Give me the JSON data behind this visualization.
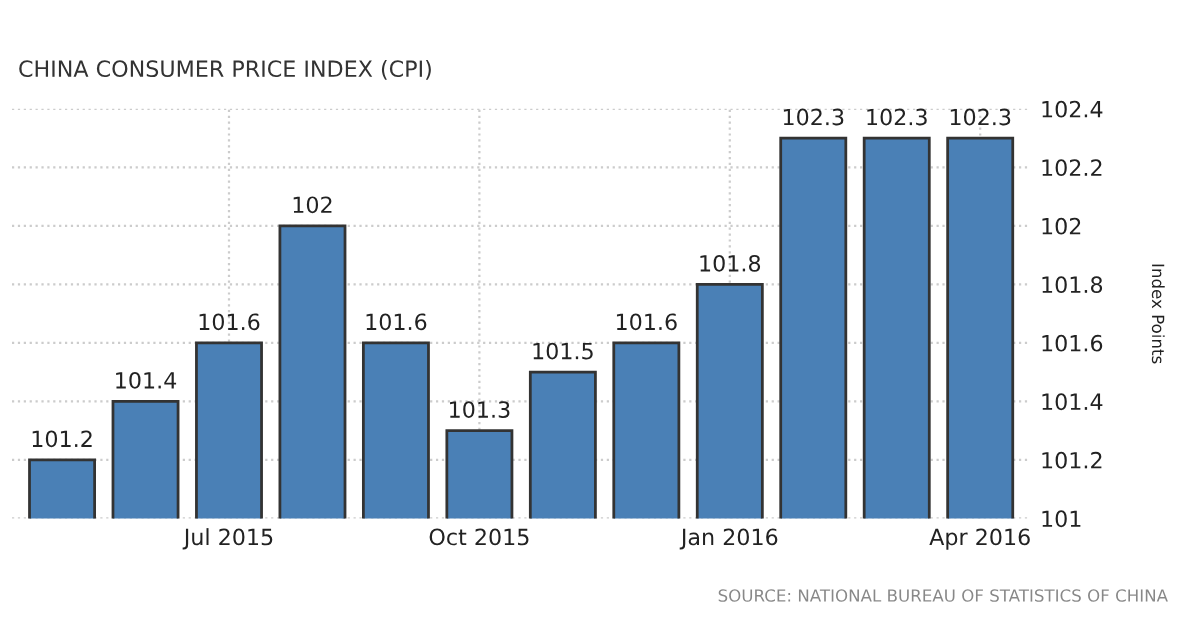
{
  "chart_data": {
    "type": "bar",
    "title": "CHINA CONSUMER PRICE INDEX (CPI)",
    "categories": [
      null,
      null,
      "Jul 2015",
      null,
      null,
      "Oct 2015",
      null,
      null,
      "Jan 2016",
      null,
      null,
      "Apr 2016"
    ],
    "values": [
      101.2,
      101.4,
      101.6,
      102,
      101.6,
      101.3,
      101.5,
      101.6,
      101.8,
      102.3,
      102.3,
      102.3
    ],
    "color": "#4a80b6",
    "ylabel": "Index Points",
    "ylim": [
      101,
      102.4
    ],
    "yticks": [
      101,
      101.2,
      101.4,
      101.6,
      101.8,
      102,
      102.2,
      102.4
    ],
    "grid": true,
    "data_labels": true,
    "annotations": [
      "SOURCE: NATIONAL BUREAU OF STATISTICS OF CHINA"
    ]
  }
}
